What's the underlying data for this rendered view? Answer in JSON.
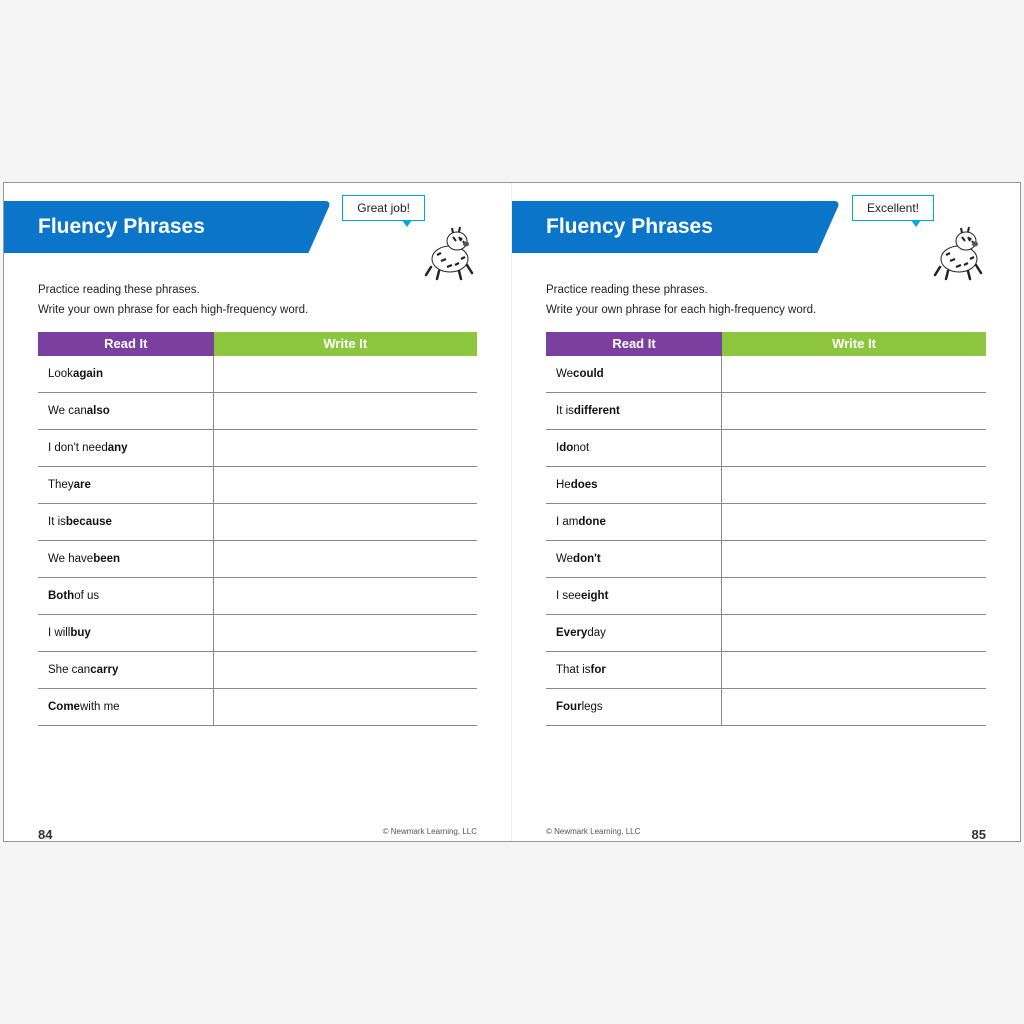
{
  "colors": {
    "banner_blue": "#0b76c9",
    "header_purple": "#7b3fa0",
    "header_green": "#8cc63f",
    "speech_border": "#00a6e0",
    "row_border": "#888888",
    "text": "#111111"
  },
  "left": {
    "title": "Fluency Phrases",
    "speech": "Great job!",
    "instruction_line1": "Practice reading these phrases.",
    "instruction_line2": "Write your own phrase for each high-frequency word.",
    "col_read": "Read It",
    "col_write": "Write It",
    "rows": [
      {
        "pre": "Look ",
        "bold": "again",
        "post": ""
      },
      {
        "pre": "We can ",
        "bold": "also",
        "post": ""
      },
      {
        "pre": "I don't need ",
        "bold": "any",
        "post": ""
      },
      {
        "pre": "They ",
        "bold": "are",
        "post": ""
      },
      {
        "pre": "It is ",
        "bold": "because",
        "post": ""
      },
      {
        "pre": "We have ",
        "bold": "been",
        "post": ""
      },
      {
        "pre": "",
        "bold": "Both",
        "post": " of us"
      },
      {
        "pre": "I will ",
        "bold": "buy",
        "post": ""
      },
      {
        "pre": "She can ",
        "bold": "carry",
        "post": ""
      },
      {
        "pre": "",
        "bold": "Come",
        "post": " with me"
      }
    ],
    "page_number": "84",
    "copyright": "© Newmark Learning, LLC"
  },
  "right": {
    "title": "Fluency Phrases",
    "speech": "Excellent!",
    "instruction_line1": "Practice reading these phrases.",
    "instruction_line2": "Write your own phrase for each high-frequency word.",
    "col_read": "Read It",
    "col_write": "Write It",
    "rows": [
      {
        "pre": "We ",
        "bold": "could",
        "post": ""
      },
      {
        "pre": "It is ",
        "bold": "different",
        "post": ""
      },
      {
        "pre": "I ",
        "bold": "do",
        "post": " not"
      },
      {
        "pre": "He ",
        "bold": "does",
        "post": ""
      },
      {
        "pre": "I am ",
        "bold": "done",
        "post": ""
      },
      {
        "pre": "We ",
        "bold": "don't",
        "post": ""
      },
      {
        "pre": "I see ",
        "bold": "eight",
        "post": ""
      },
      {
        "pre": "",
        "bold": "Every",
        "post": " day"
      },
      {
        "pre": "That is ",
        "bold": "for",
        "post": ""
      },
      {
        "pre": "",
        "bold": "Four",
        "post": " legs"
      }
    ],
    "page_number": "85",
    "copyright": "© Newmark Learning, LLC"
  }
}
